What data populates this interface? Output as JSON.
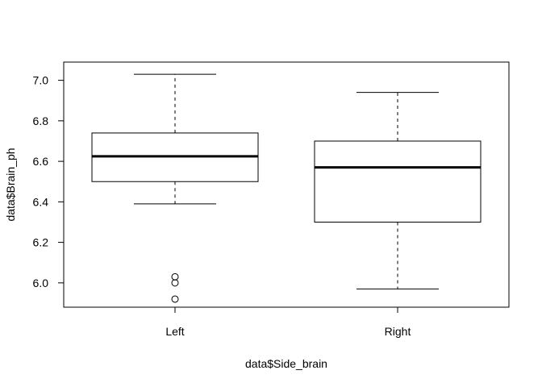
{
  "chart_data": {
    "type": "boxplot",
    "title": "",
    "xlabel": "data$Side_brain",
    "ylabel": "data$Brain_ph",
    "categories": [
      "Left",
      "Right"
    ],
    "ylim": [
      5.88,
      7.09
    ],
    "yticks": [
      6.0,
      6.2,
      6.4,
      6.6,
      6.8,
      7.0
    ],
    "ytick_labels": [
      "6.0",
      "6.2",
      "6.4",
      "6.6",
      "6.8",
      "7.0"
    ],
    "boxes": [
      {
        "name": "Left",
        "whisker_low": 6.39,
        "q1": 6.5,
        "median": 6.625,
        "q3": 6.74,
        "whisker_high": 7.03,
        "outliers": [
          6.03,
          6.0,
          5.92
        ]
      },
      {
        "name": "Right",
        "whisker_low": 5.97,
        "q1": 6.3,
        "median": 6.57,
        "q3": 6.7,
        "whisker_high": 6.94,
        "outliers": []
      }
    ],
    "grid": false,
    "colors": {
      "stroke": "#000000",
      "background": "#ffffff"
    }
  }
}
